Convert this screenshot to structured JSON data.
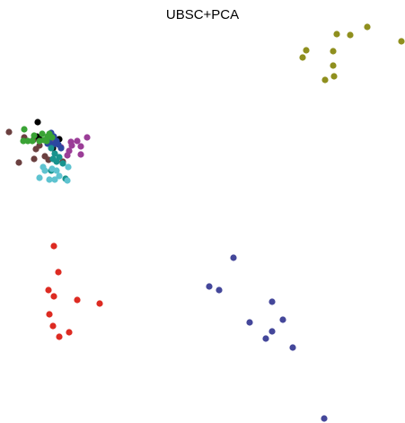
{
  "chart_data": {
    "type": "scatter",
    "title": "UBSC+PCA",
    "xlabel": "",
    "ylabel": "",
    "grid": false,
    "legend": "none",
    "series": [
      {
        "color": "#8f8f1e",
        "points": [
          [
            409,
            30
          ],
          [
            447,
            46
          ],
          [
            375,
            38
          ],
          [
            390,
            39
          ],
          [
            341,
            56
          ],
          [
            371,
            57
          ],
          [
            337,
            64
          ],
          [
            371,
            73
          ],
          [
            372,
            85
          ],
          [
            362,
            89
          ]
        ]
      },
      {
        "color": "#44479a",
        "points": [
          [
            260,
            287
          ],
          [
            233,
            319
          ],
          [
            244,
            323
          ],
          [
            303,
            336
          ],
          [
            315,
            356
          ],
          [
            278,
            359
          ],
          [
            303,
            369
          ],
          [
            296,
            377
          ],
          [
            326,
            387
          ],
          [
            361,
            466
          ]
        ]
      },
      {
        "color": "#dd2b22",
        "points": [
          [
            60,
            274
          ],
          [
            65,
            303
          ],
          [
            54,
            323
          ],
          [
            60,
            330
          ],
          [
            86,
            334
          ],
          [
            111,
            338
          ],
          [
            55,
            350
          ],
          [
            59,
            363
          ],
          [
            77,
            370
          ],
          [
            66,
            375
          ]
        ]
      },
      {
        "color": "#000000",
        "points": [
          [
            42,
            136
          ],
          [
            41,
            152
          ],
          [
            44,
            155
          ],
          [
            66,
            155
          ],
          [
            59,
            165
          ]
        ]
      },
      {
        "color": "#6b4040",
        "points": [
          [
            10,
            147
          ],
          [
            27,
            153
          ],
          [
            37,
            156
          ],
          [
            44,
            162
          ],
          [
            40,
            166
          ],
          [
            50,
            174
          ],
          [
            54,
            178
          ],
          [
            38,
            177
          ],
          [
            21,
            181
          ],
          [
            70,
            180
          ]
        ]
      },
      {
        "color": "#9b3d97",
        "points": [
          [
            97,
            153
          ],
          [
            86,
            157
          ],
          [
            79,
            158
          ],
          [
            90,
            163
          ],
          [
            68,
            164
          ],
          [
            77,
            168
          ],
          [
            90,
            172
          ],
          [
            75,
            173
          ],
          [
            80,
            162
          ],
          [
            60,
            156
          ]
        ]
      },
      {
        "color": "#2c47a0",
        "points": [
          [
            57,
            148
          ],
          [
            60,
            152
          ],
          [
            55,
            156
          ],
          [
            63,
            157
          ],
          [
            65,
            161
          ],
          [
            59,
            161
          ],
          [
            68,
            165
          ],
          [
            53,
            160
          ]
        ]
      },
      {
        "color": "#18938e",
        "points": [
          [
            57,
            165
          ],
          [
            61,
            171
          ],
          [
            66,
            175
          ],
          [
            59,
            177
          ],
          [
            63,
            180
          ],
          [
            70,
            182
          ],
          [
            57,
            190
          ],
          [
            73,
            199
          ]
        ]
      },
      {
        "color": "#5ec3d0",
        "points": [
          [
            48,
            186
          ],
          [
            58,
            188
          ],
          [
            76,
            186
          ],
          [
            63,
            190
          ],
          [
            50,
            190
          ],
          [
            44,
            198
          ],
          [
            55,
            200
          ],
          [
            61,
            200
          ],
          [
            75,
            201
          ],
          [
            66,
            196
          ]
        ]
      },
      {
        "color": "#3aa335",
        "points": [
          [
            27,
            144
          ],
          [
            47,
            149
          ],
          [
            55,
            149
          ],
          [
            38,
            151
          ],
          [
            53,
            152
          ],
          [
            26,
            157
          ],
          [
            31,
            157
          ],
          [
            44,
            157
          ],
          [
            36,
            157
          ],
          [
            49,
            156
          ],
          [
            52,
            157
          ],
          [
            58,
            153
          ]
        ]
      }
    ]
  }
}
